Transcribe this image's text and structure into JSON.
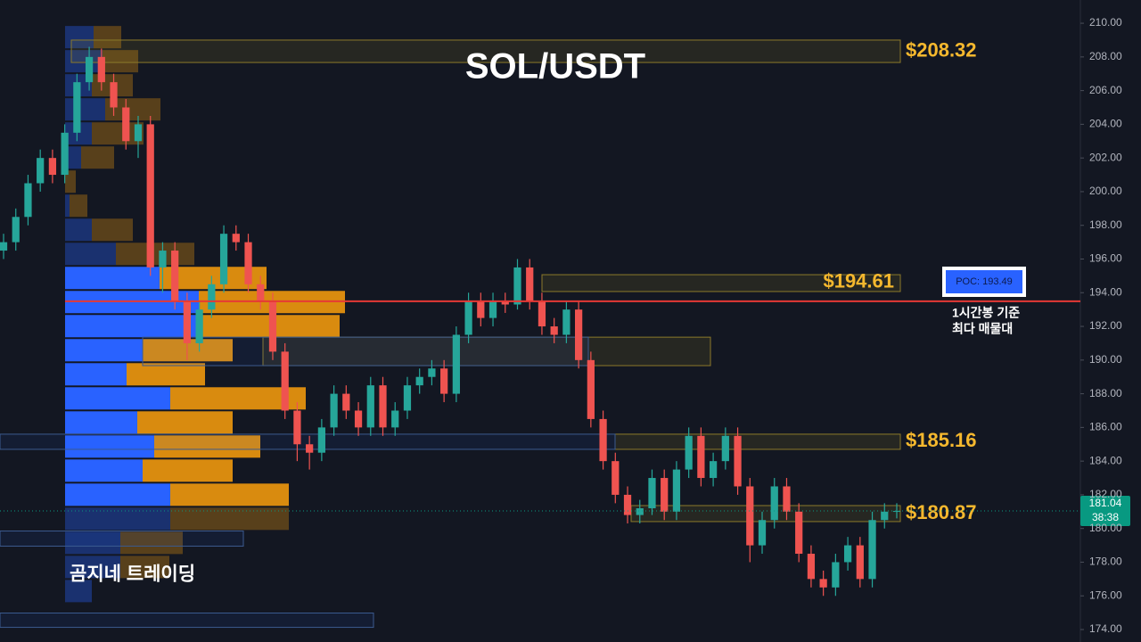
{
  "chart_data": {
    "type": "candlestick",
    "title": "SOL/USDT",
    "watermark": "곰지네 트레이딩",
    "ylim": [
      173.26,
      211.38
    ],
    "yticks": [
      {
        "value": 210,
        "label": "210.00"
      },
      {
        "value": 208,
        "label": "208.00"
      },
      {
        "value": 206,
        "label": "206.00"
      },
      {
        "value": 204,
        "label": "204.00"
      },
      {
        "value": 202,
        "label": "202.00"
      },
      {
        "value": 200,
        "label": "200.00"
      },
      {
        "value": 198,
        "label": "198.00"
      },
      {
        "value": 196,
        "label": "196.00"
      },
      {
        "value": 194,
        "label": "194.00"
      },
      {
        "value": 192,
        "label": "192.00"
      },
      {
        "value": 190,
        "label": "190.00"
      },
      {
        "value": 188,
        "label": "188.00"
      },
      {
        "value": 186,
        "label": "186.00"
      },
      {
        "value": 184,
        "label": "184.00"
      },
      {
        "value": 182,
        "label": "182.00"
      },
      {
        "value": 180,
        "label": "180.00"
      },
      {
        "value": 178,
        "label": "178.00"
      },
      {
        "value": 176,
        "label": "176.00"
      },
      {
        "value": 174,
        "label": "174.00"
      }
    ],
    "up_color": "#26a69a",
    "down_color": "#ef5350",
    "candles": {
      "open": [
        196.5,
        197,
        198.5,
        200.5,
        202,
        201,
        203.5,
        206.5,
        208,
        206.5,
        205,
        203,
        204,
        195.5,
        196.5,
        193.5,
        191,
        193,
        194.5,
        197.5,
        197,
        194.5,
        193.5,
        190.5,
        187,
        185,
        184.5,
        186,
        188,
        187,
        186,
        188.5,
        186,
        187,
        188.5,
        189,
        189.5,
        188,
        191.5,
        193.5,
        192.5,
        193.5,
        193.3,
        195.5,
        193.5,
        192,
        191.5,
        193,
        190,
        186.5,
        184,
        182,
        180.8,
        181.2,
        183,
        181,
        183.5,
        185.5,
        183,
        184,
        185.5,
        182.5,
        179,
        180.5,
        182.5,
        181,
        178.5,
        177,
        176.5,
        178,
        179,
        177,
        180.5,
        181
      ],
      "high": [
        197.5,
        199,
        201,
        202.5,
        202.5,
        204,
        207,
        208.6,
        208.5,
        207,
        205.5,
        204.5,
        204.5,
        197,
        197,
        194,
        193.5,
        195,
        198,
        198,
        197.5,
        195,
        194,
        191,
        187.5,
        185.5,
        186.5,
        188.5,
        188.5,
        187.5,
        189,
        189,
        187.5,
        189,
        189.5,
        190,
        190,
        192,
        194,
        194,
        194,
        194,
        196,
        196,
        194,
        192.5,
        193.5,
        193.5,
        190.5,
        187,
        184.5,
        182.5,
        181.7,
        183.5,
        183.5,
        184,
        186,
        186,
        184.5,
        186,
        186,
        183,
        181,
        183,
        183,
        181.5,
        179,
        177.5,
        178.5,
        179.5,
        179.5,
        181,
        181.5,
        181.5
      ],
      "low": [
        196,
        196.5,
        198,
        200,
        200.5,
        200.5,
        203,
        206,
        206,
        204.5,
        202.5,
        202,
        195,
        194,
        193,
        190,
        190.5,
        192.5,
        194,
        196.5,
        194,
        193,
        190,
        186.5,
        184,
        183.5,
        184,
        185.5,
        186.5,
        185.5,
        185.5,
        185.5,
        185.5,
        186.5,
        188,
        188.5,
        187.5,
        187.5,
        191,
        192,
        192,
        192.8,
        193,
        193,
        191.5,
        191,
        191,
        189.5,
        186,
        183.5,
        181.5,
        180.3,
        180.3,
        180.8,
        180.5,
        180.5,
        183,
        182.5,
        182.5,
        183.5,
        182,
        178,
        178.5,
        180,
        180.5,
        178,
        176.5,
        176,
        176,
        177.5,
        176.5,
        176.5,
        180,
        180.6
      ],
      "close": [
        197,
        198.5,
        200.5,
        202,
        201,
        203.5,
        206.5,
        208,
        206.5,
        205,
        203,
        204,
        195.5,
        196.5,
        193.5,
        191,
        193,
        194.5,
        197.5,
        197,
        194.5,
        193.5,
        190.5,
        187,
        185,
        184.5,
        186,
        188,
        187,
        186,
        188.5,
        186,
        187,
        188.5,
        189,
        189.5,
        188,
        191.5,
        193.5,
        192.5,
        193.5,
        193.3,
        195.5,
        193.5,
        192,
        191.5,
        193,
        190,
        186.5,
        184,
        182,
        180.8,
        181.2,
        183,
        181,
        183.5,
        185.5,
        183,
        184,
        185.5,
        182.5,
        179,
        180.5,
        182.5,
        181,
        178.5,
        177,
        176.5,
        178,
        179,
        177,
        180.5,
        181,
        181.04
      ]
    },
    "zones": [
      {
        "low": 207.67,
        "high": 209.0,
        "level": 208.32,
        "label": "$208.32"
      },
      {
        "low": 194.07,
        "high": 195.07,
        "level": 194.61,
        "label": "$194.61"
      },
      {
        "low": 184.7,
        "high": 185.6,
        "level": 185.16,
        "label": "$185.16"
      },
      {
        "low": 180.41,
        "high": 181.36,
        "level": 180.87,
        "label": "$180.87"
      },
      {
        "low": 189.67,
        "high": 191.36
      }
    ],
    "boxes": [
      {
        "low": 184.7,
        "high": 185.6
      },
      {
        "low": 178.95,
        "high": 179.85
      },
      {
        "low": 174.13,
        "high": 174.98
      },
      {
        "low": 189.67,
        "high": 191.36
      }
    ],
    "poc": {
      "value": 193.49,
      "label": "POC: 193.49",
      "color": "#e53935"
    },
    "annotations": [
      "1시간봉 기준",
      "최다 매물대"
    ],
    "last_price": {
      "value": 181.04,
      "countdown": "38:38",
      "color": "#089981"
    },
    "profile": {
      "top": 209.89,
      "row_size": 1.43,
      "value_area": [
        195.6,
        179.88
      ],
      "buy_color": "#2962ff",
      "sell_color": "#d98b0f",
      "buy": [
        32,
        42,
        30,
        45,
        30,
        18,
        0,
        5,
        30,
        57,
        106,
        150,
        150,
        87,
        69,
        118,
        81,
        100,
        87,
        118,
        118,
        62,
        62,
        30
      ],
      "sell": [
        31,
        40,
        46,
        62,
        58,
        37,
        12,
        20,
        46,
        88,
        120,
        164,
        158,
        101,
        88,
        152,
        107,
        119,
        101,
        133,
        133,
        70,
        55,
        0
      ]
    }
  }
}
